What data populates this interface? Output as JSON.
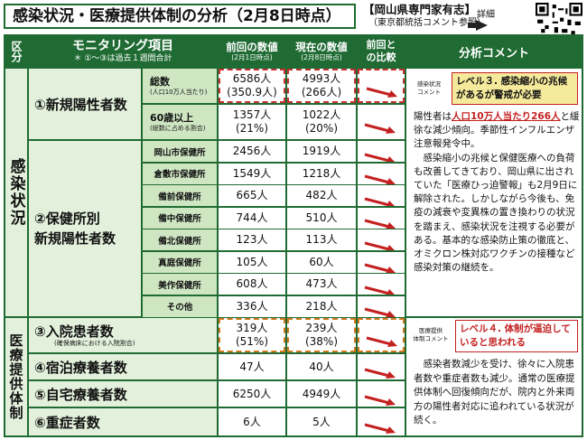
{
  "title": "感染状況・医療提供体制の分析（2月8日時点）",
  "expert": {
    "title": "【岡山県専門家有志】",
    "sub": "（東京都統括コメント参照）",
    "detail": "詳細"
  },
  "header": {
    "section": "区分",
    "item": "モニタリング項目",
    "item_note": "＊ ①～③は過去１週間合計",
    "prev": "前回の数値",
    "prev_date": "(2月1日時点)",
    "cur": "現在の数値",
    "cur_date": "(2月8日時点)",
    "compare": "前回との比較",
    "comment": "分析コメント"
  },
  "sections": {
    "infection": "感染状況",
    "medical": "医療提供体制"
  },
  "items": {
    "new_cases": "①新規陽性者数",
    "total_label": "総数",
    "total_note": "(人口10万人当たり)",
    "over60_label": "60歳以上",
    "over60_note": "(総数に占める割合)",
    "health_centers": "②保健所別\n新規陽性者数",
    "hospitalized": "③入院患者数",
    "hospitalized_note": "(確保病床における入院割合)",
    "lodging": "④宿泊療養者数",
    "home": "⑤自宅療養者数",
    "severe": "⑥重症者数"
  },
  "values": {
    "total_prev": "6586人\n(350.9人)",
    "total_cur": "4993人\n(266人)",
    "over60_prev": "1357人\n(21%)",
    "over60_cur": "1022人\n(20%)",
    "hosp_prev": "319人\n(51%)",
    "hosp_cur": "239人\n(38%)",
    "lodging_prev": "47人",
    "lodging_cur": "40人",
    "home_prev": "6250人",
    "home_cur": "4949人",
    "severe_prev": "6人",
    "severe_cur": "5人"
  },
  "health_center_rows": [
    {
      "name": "岡山市保健所",
      "prev": "2456人",
      "cur": "1919人"
    },
    {
      "name": "倉敷市保健所",
      "prev": "1549人",
      "cur": "1218人"
    },
    {
      "name": "備前保健所",
      "prev": "665人",
      "cur": "482人"
    },
    {
      "name": "備中保健所",
      "prev": "744人",
      "cur": "510人"
    },
    {
      "name": "備北保健所",
      "prev": "123人",
      "cur": "113人"
    },
    {
      "name": "真庭保健所",
      "prev": "105人",
      "cur": "60人"
    },
    {
      "name": "美作保健所",
      "prev": "608人",
      "cur": "473人"
    },
    {
      "name": "その他",
      "prev": "336人",
      "cur": "218人"
    }
  ],
  "comments": {
    "infection_tag": "感染状況\nコメント",
    "infection_level": "レベル３. 感染縮小の兆候があるが警戒が必要",
    "infection_text_pre": "陽性者は",
    "infection_text_hl1": "人口10万人当たり",
    "infection_text_hl2": "266人",
    "infection_text_post": "と緩徐な減少傾向。季節性インフルエンザ注意報発令中。\n　感染縮小の兆候と保健医療への負荷も改善してきており、岡山県に出されていた「医療ひっ迫警報」も2月9日に解除された。しかしながら今後も、免疫の減衰や変異株の置き換わりの状況を踏まえ、感染状況を注視する必要がある。基本的な感染防止策の徹底と、オミクロン株対応ワクチンの接種など感染対策の継続を。",
    "medical_tag": "医療提供\n体制コメント",
    "medical_level": "レベル４. 体制が逼迫していると思われる",
    "medical_text": "　感染者数減少を受け、徐々に入院患者数や重症者数も減少。通常の医療提供体制へ回復傾向だが、院内と外来両方の陽性者対応に追われている状況が続く。"
  },
  "colors": {
    "header_green": "#1f6b33",
    "trend_arrow": "#c42020",
    "level_red": "#c42020"
  }
}
